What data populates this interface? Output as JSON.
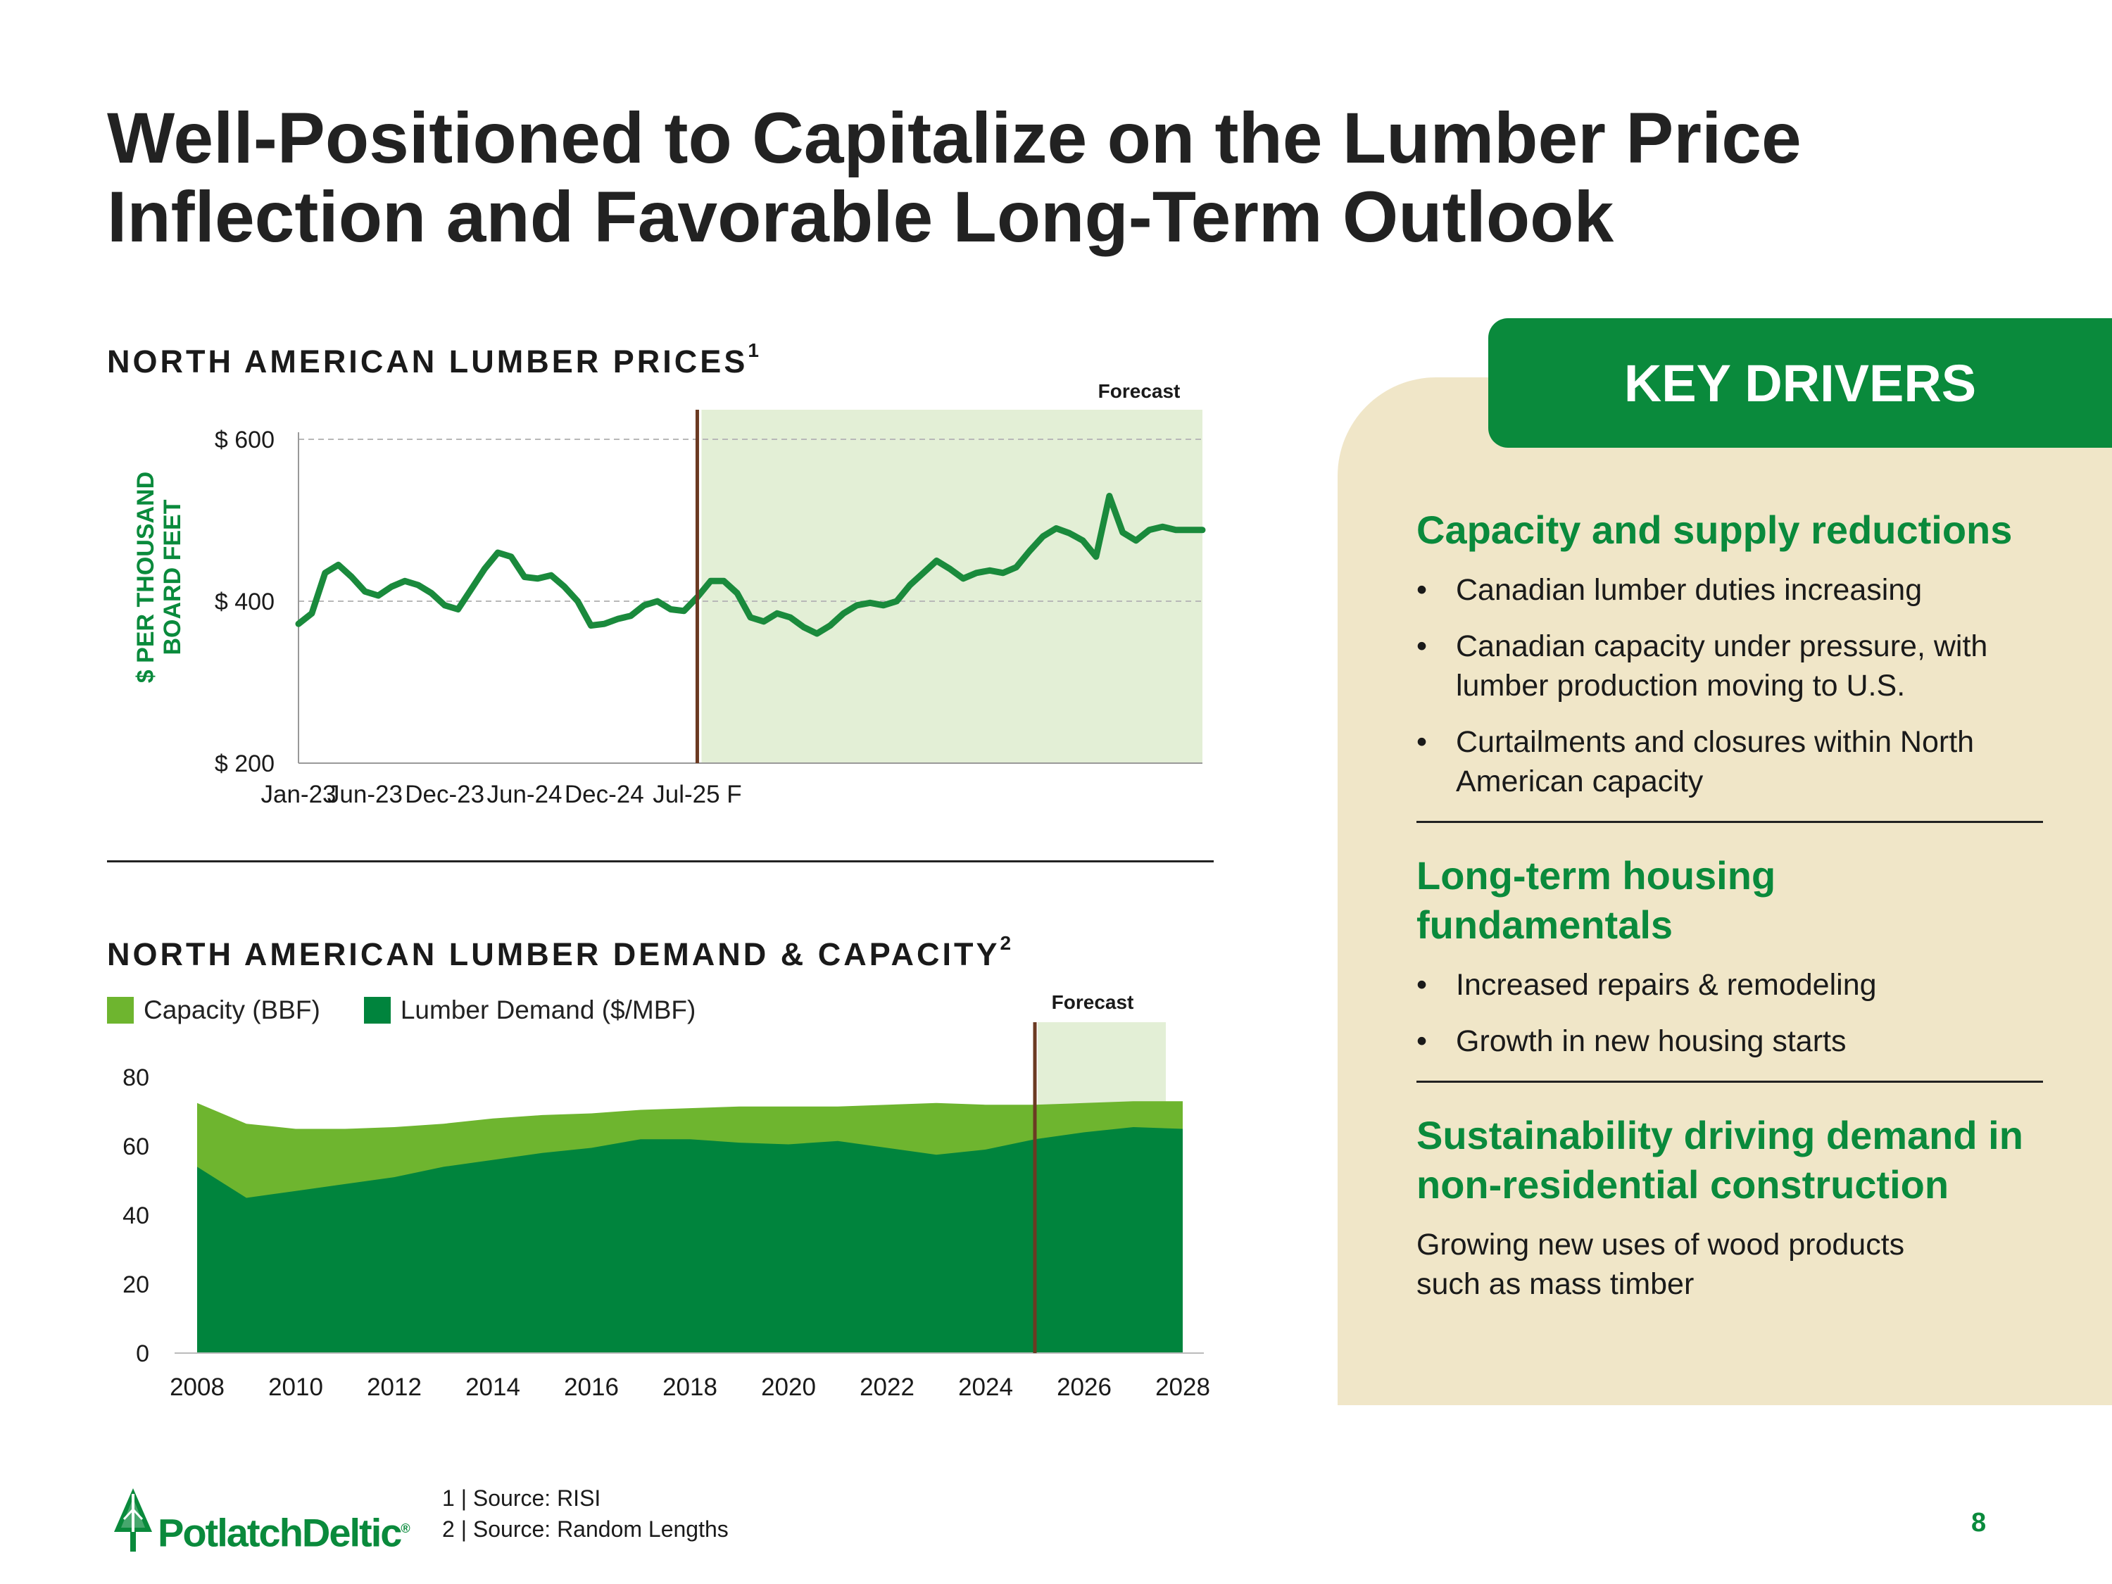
{
  "title_lines": [
    "Well-Positioned to Capitalize on the Lumber Price",
    "Inflection and Favorable Long-Term Outlook"
  ],
  "prices_section": {
    "title": "NORTH AMERICAN LUMBER PRICES",
    "sup": "1"
  },
  "demand_section": {
    "title": "NORTH AMERICAN LUMBER DEMAND & CAPACITY",
    "sup": "2"
  },
  "colors": {
    "brand_green": "#0a8a3c",
    "light_green": "#6eb52f",
    "forecast_shade": "#e3efd6",
    "forecast_line": "#6b3a22",
    "panel_bg": "#f0e6c8"
  },
  "chart_data": [
    {
      "type": "line",
      "title": "NORTH AMERICAN LUMBER PRICES",
      "ylabel": "$ PER THOUSAND BOARD FEET",
      "y_ticks": [
        "$ 200",
        "$ 400",
        "$ 600"
      ],
      "ylim": [
        200,
        600
      ],
      "x_tick_labels": [
        "Jan-23",
        "Jun-23",
        "Dec-23",
        "Jun-24",
        "Dec-24",
        "Jul-25 F"
      ],
      "forecast_label": "Forecast",
      "forecast_start_month_index": 30,
      "grid": "dashed at 400 and 600",
      "series": [
        {
          "color": "#1a8a3c",
          "values": [
            372,
            385,
            435,
            445,
            430,
            412,
            407,
            418,
            425,
            420,
            410,
            395,
            390,
            415,
            440,
            460,
            455,
            430,
            428,
            432,
            418,
            400,
            370,
            372,
            378,
            382,
            395,
            400,
            390,
            388,
            405,
            425,
            425,
            410,
            380,
            375,
            385,
            380,
            368,
            360,
            370,
            385,
            395,
            398,
            395,
            400,
            420,
            435,
            450,
            440,
            428,
            435,
            438,
            435,
            442,
            462,
            480,
            490,
            484,
            475,
            455,
            530,
            485,
            475,
            488,
            492,
            488,
            488,
            488
          ]
        }
      ]
    },
    {
      "type": "area",
      "title": "NORTH AMERICAN LUMBER DEMAND & CAPACITY",
      "x": [
        2008,
        2009,
        2010,
        2011,
        2012,
        2013,
        2014,
        2015,
        2016,
        2017,
        2018,
        2019,
        2020,
        2021,
        2022,
        2023,
        2024,
        2025,
        2026,
        2027,
        2028
      ],
      "x_ticks": [
        2008,
        2010,
        2012,
        2014,
        2016,
        2018,
        2020,
        2022,
        2024,
        2026,
        2028
      ],
      "y_ticks": [
        0,
        20,
        40,
        60,
        80
      ],
      "ylim": [
        0,
        90
      ],
      "forecast_label": "Forecast",
      "forecast_start": 2025,
      "series": [
        {
          "name": "Capacity (BBF)",
          "color": "#6eb52f",
          "values": [
            72.5,
            66.5,
            65,
            65,
            65.5,
            66.5,
            68,
            69,
            69.5,
            70.5,
            71,
            71.5,
            71.5,
            71.5,
            72,
            72.5,
            72,
            72,
            72.5,
            73,
            73
          ]
        },
        {
          "name": "Lumber Demand ($/MBF)",
          "color": "#00843d",
          "values": [
            54,
            45,
            47,
            49,
            51,
            54,
            56,
            58,
            59.5,
            62,
            62,
            61,
            60.5,
            61.5,
            59.5,
            57.5,
            59,
            62,
            64,
            65.5,
            65
          ]
        }
      ]
    }
  ],
  "key_drivers": {
    "header": "KEY DRIVERS",
    "sections": [
      {
        "heading": "Capacity and supply reductions",
        "bullets": [
          "Canadian lumber duties increasing",
          "Canadian capacity under pressure, with lumber production moving to U.S.",
          "Curtailments and closures within North American capacity"
        ]
      },
      {
        "heading": "Long-term housing fundamentals",
        "bullets": [
          "Increased repairs & remodeling",
          "Growth in new housing starts"
        ]
      },
      {
        "heading": "Sustainability driving demand in non-residential construction",
        "text": "Growing new uses of wood products such as mass timber"
      }
    ]
  },
  "footer": {
    "logo": "PotlatchDeltic",
    "logo_mark": "®",
    "footnotes": [
      "1 | Source: RISI",
      "2 | Source: Random Lengths"
    ],
    "page": "8"
  }
}
